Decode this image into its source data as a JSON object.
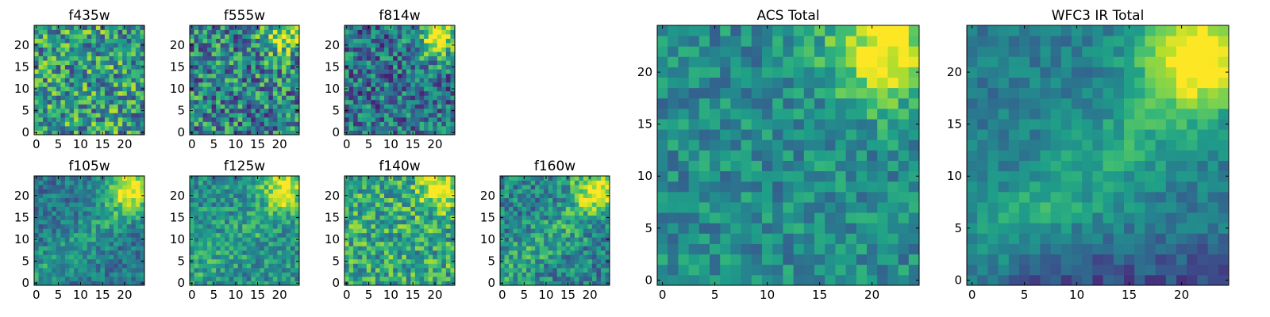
{
  "figure": {
    "type": "image-grid"
  },
  "chart_data": [
    {
      "type": "heatmap",
      "id": "f435w",
      "title": "f435w",
      "colormap": "viridis",
      "size": [
        25,
        25
      ],
      "xlim": [
        0,
        24
      ],
      "ylim": [
        0,
        24
      ],
      "xticks": [
        0,
        5,
        10,
        15,
        20
      ],
      "yticks": [
        0,
        5,
        10,
        15,
        20
      ],
      "pattern": "noisy, uniform mid-high values",
      "seed": 11
    },
    {
      "type": "heatmap",
      "id": "f555w",
      "title": "f555w",
      "colormap": "viridis",
      "size": [
        25,
        25
      ],
      "xlim": [
        0,
        24
      ],
      "ylim": [
        0,
        24
      ],
      "xticks": [
        0,
        5,
        10,
        15,
        20
      ],
      "yticks": [
        0,
        5,
        10,
        15,
        20
      ],
      "pattern": "noisy, slight bright top-right",
      "seed": 23
    },
    {
      "type": "heatmap",
      "id": "f814w",
      "title": "f814w",
      "colormap": "viridis",
      "size": [
        25,
        25
      ],
      "xlim": [
        0,
        24
      ],
      "ylim": [
        0,
        24
      ],
      "xticks": [
        0,
        5,
        10,
        15,
        20
      ],
      "yticks": [
        0,
        5,
        10,
        15,
        20
      ],
      "pattern": "bright top-right corner, noisy",
      "seed": 37
    },
    {
      "type": "heatmap",
      "id": "f105w",
      "title": "f105w",
      "colormap": "viridis",
      "size": [
        25,
        25
      ],
      "xlim": [
        0,
        24
      ],
      "ylim": [
        0,
        24
      ],
      "xticks": [
        0,
        5,
        10,
        15,
        20
      ],
      "yticks": [
        0,
        5,
        10,
        15,
        20
      ],
      "pattern": "bright top-right, diagonal ridge",
      "seed": 41
    },
    {
      "type": "heatmap",
      "id": "f125w",
      "title": "f125w",
      "colormap": "viridis",
      "size": [
        25,
        25
      ],
      "xlim": [
        0,
        24
      ],
      "ylim": [
        0,
        24
      ],
      "xticks": [
        0,
        5,
        10,
        15,
        20
      ],
      "yticks": [
        0,
        5,
        10,
        15,
        20
      ],
      "pattern": "bright top-right, diagonal ridge",
      "seed": 53
    },
    {
      "type": "heatmap",
      "id": "f140w",
      "title": "f140w",
      "colormap": "viridis",
      "size": [
        25,
        25
      ],
      "xlim": [
        0,
        24
      ],
      "ylim": [
        0,
        24
      ],
      "xticks": [
        0,
        5,
        10,
        15,
        20
      ],
      "yticks": [
        0,
        5,
        10,
        15,
        20
      ],
      "pattern": "bright top-right, high values",
      "seed": 67
    },
    {
      "type": "heatmap",
      "id": "f160w",
      "title": "f160w",
      "colormap": "viridis",
      "size": [
        25,
        25
      ],
      "xlim": [
        0,
        24
      ],
      "ylim": [
        0,
        24
      ],
      "xticks": [
        0,
        5,
        10,
        15,
        20
      ],
      "yticks": [
        0,
        5,
        10,
        15,
        20
      ],
      "pattern": "bright top-right, diagonal ridge",
      "seed": 79
    },
    {
      "type": "heatmap",
      "id": "acs-total",
      "title": "ACS Total",
      "colormap": "viridis",
      "size": [
        25,
        25
      ],
      "xlim": [
        0,
        24
      ],
      "ylim": [
        0,
        24
      ],
      "xticks": [
        0,
        5,
        10,
        15,
        20
      ],
      "yticks": [
        0,
        5,
        10,
        15,
        20
      ],
      "pattern": "bright blob top-right, moderate noise",
      "seed": 83
    },
    {
      "type": "heatmap",
      "id": "wfc3-ir-total",
      "title": "WFC3 IR Total",
      "colormap": "viridis",
      "size": [
        25,
        25
      ],
      "xlim": [
        0,
        24
      ],
      "ylim": [
        0,
        24
      ],
      "xticks": [
        0,
        5,
        10,
        15,
        20
      ],
      "yticks": [
        0,
        5,
        10,
        15,
        20
      ],
      "pattern": "bright top-right, smooth diagonal ridge, dark bottom-left",
      "seed": 97
    }
  ],
  "palette": {
    "viridis": [
      "#440154",
      "#482878",
      "#3e4989",
      "#31688e",
      "#26828e",
      "#1f9e89",
      "#35b779",
      "#6ece58",
      "#b5de2b",
      "#fde725"
    ]
  }
}
